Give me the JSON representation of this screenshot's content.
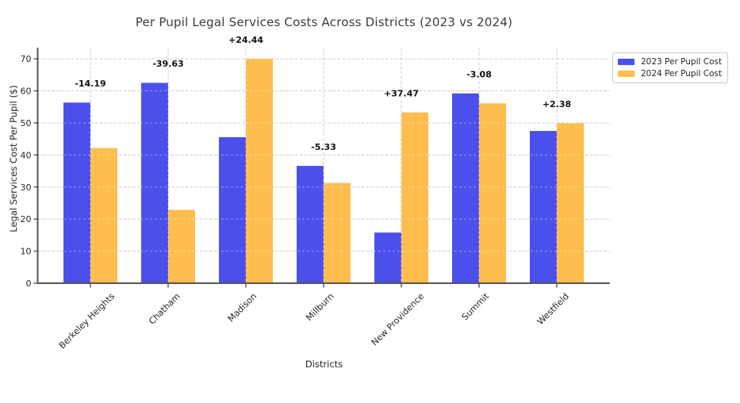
{
  "chart_data": {
    "type": "bar",
    "title": "Per Pupil Legal Services Costs Across Districts (2023 vs 2024)",
    "xlabel": "Districts",
    "ylabel": "Legal Services Cost Per Pupil ($)",
    "categories": [
      "Berkeley Heights",
      "Chatham",
      "Madison",
      "Millburn",
      "New Providence",
      "Summit",
      "Westfield"
    ],
    "series": [
      {
        "name": "2023 Per Pupil Cost",
        "color": "#4b50ed",
        "values": [
          56.35,
          62.5,
          45.56,
          36.6,
          15.8,
          59.2,
          47.5
        ]
      },
      {
        "name": "2024 Per Pupil Cost",
        "color": "#ffbd4d",
        "values": [
          42.16,
          22.87,
          70.0,
          31.27,
          53.27,
          56.12,
          49.88
        ]
      }
    ],
    "bar_diff_labels": [
      "-14.19",
      "-39.63",
      "+24.44",
      "-5.33",
      "+37.47",
      "-3.08",
      "+2.38"
    ],
    "yticks": [
      0,
      10,
      20,
      30,
      40,
      50,
      60,
      70
    ],
    "ylim": [
      0,
      73.5
    ],
    "grid": "dashed, horizontal and vertical",
    "legend_position": "upper right, outside plot area"
  },
  "colors": {
    "axis_spine": "#555555",
    "grid_line": "#cccccc",
    "title_text": "#3b3b3b",
    "tick_text": "#262626",
    "annotation_text": "#111111",
    "background": "#ffffff"
  }
}
